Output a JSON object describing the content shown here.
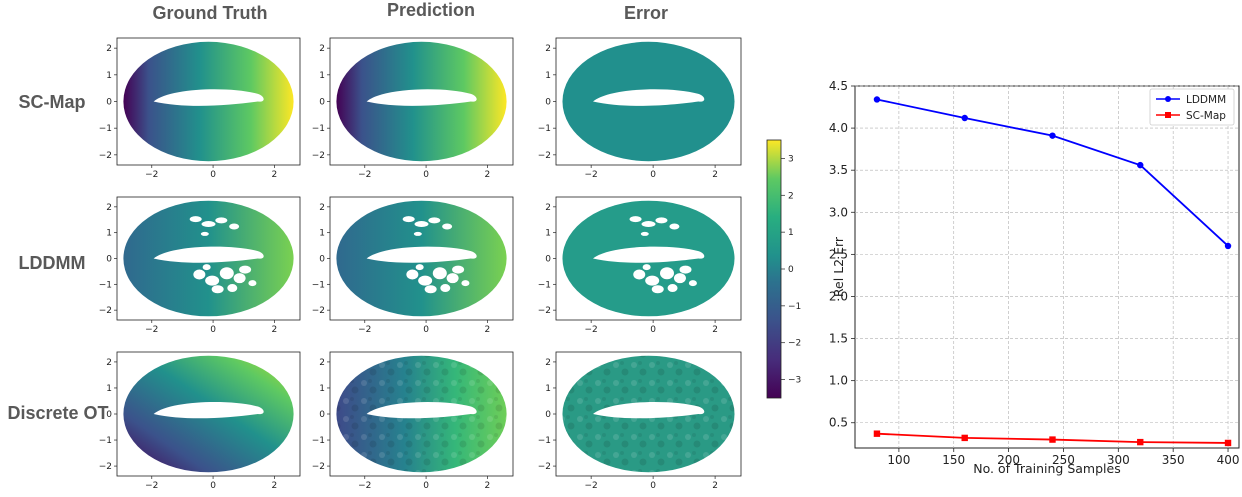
{
  "headers": {
    "col1": "Ground Truth",
    "col2": "Prediction",
    "col3": "Error"
  },
  "rows": {
    "r1": "SC-Map",
    "r2": "LDDMM",
    "r3": "Discrete OT"
  },
  "colorbar": {
    "ticks": [
      "3",
      "2",
      "1",
      "0",
      "−1",
      "−2",
      "−3"
    ],
    "range": [
      -3.5,
      3.5
    ],
    "colormap": "viridis"
  },
  "small_plots": {
    "x_ticks": [
      "−2",
      "0",
      "2"
    ],
    "y_ticks_rows12": [
      "2",
      "1",
      "0",
      "−1",
      "−2"
    ],
    "y_ticks_row2": [
      "2",
      "1",
      "0",
      "−1",
      "−2"
    ],
    "y_ticks_row3": [
      "2",
      "1",
      "0",
      "−1",
      "−2"
    ]
  },
  "chart_data": {
    "type": "line",
    "x": [
      80,
      160,
      240,
      320,
      400
    ],
    "series": [
      {
        "name": "LDDMM",
        "values": [
          4.34,
          4.12,
          3.91,
          3.56,
          2.6
        ],
        "color": "#0000ff",
        "marker": "circle"
      },
      {
        "name": "SC-Map",
        "values": [
          0.37,
          0.32,
          0.3,
          0.27,
          0.26
        ],
        "color": "#ff0000",
        "marker": "square"
      }
    ],
    "xlabel": "No. of Training Samples",
    "ylabel": "Rel L2 Err",
    "xlim": [
      60,
      410
    ],
    "ylim": [
      0.2,
      4.5
    ],
    "x_ticks": [
      "100",
      "150",
      "200",
      "250",
      "300",
      "350",
      "400"
    ],
    "y_ticks": [
      "0.5",
      "1.0",
      "1.5",
      "2.0",
      "2.5",
      "3.0",
      "3.5",
      "4.0",
      "4.5"
    ],
    "grid": true,
    "legend": "top-right"
  }
}
